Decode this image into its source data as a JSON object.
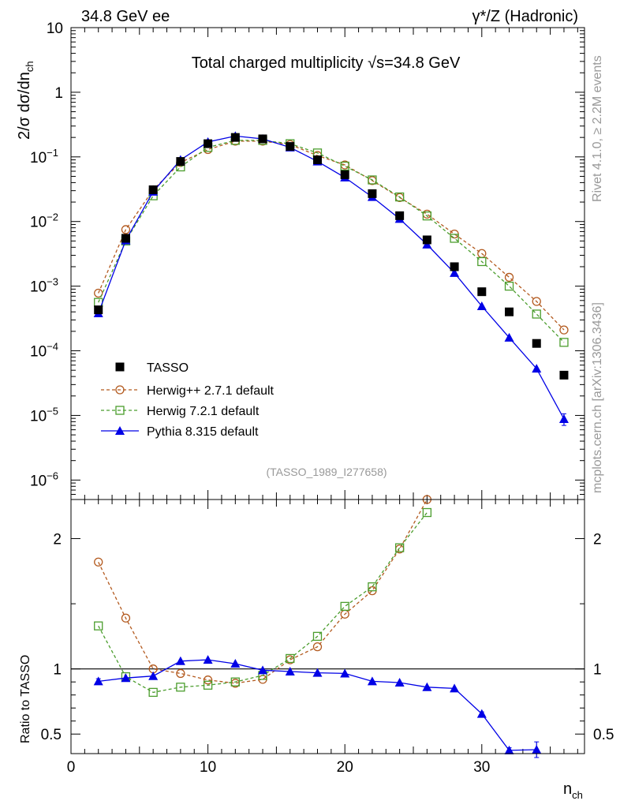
{
  "header": {
    "left": "34.8 GeV ee",
    "right": "γ*/Z (Hadronic)"
  },
  "side_text": {
    "rivet": "Rivet 4.1.0, ≥ 2.2M events",
    "site": "mcplots.cern.ch [arXiv:1306.3436]"
  },
  "colors": {
    "tasso": "#000000",
    "herwigpp": "#b35a1f",
    "herwig7": "#4b9d2d",
    "pythia": "#0000e6",
    "watermark": "#999999"
  },
  "chart_data": [
    {
      "type": "scatter",
      "panel": "main",
      "title_prefix": "Total charged multiplicity ",
      "title_energy": "s=34.8 GeV",
      "ylabel": "2/σ  dσ/dn",
      "ylabel_sub": "ch",
      "yscale": "log",
      "ylim": [
        5e-07,
        10
      ],
      "xlim": [
        0,
        37.5
      ],
      "y_tick_labels": [
        {
          "base": "10",
          "exp": "",
          "value": 10
        },
        {
          "base": "1",
          "exp": "",
          "value": 1
        },
        {
          "base": "10",
          "exp": "−1",
          "value": 0.1
        },
        {
          "base": "10",
          "exp": "−2",
          "value": 0.01
        },
        {
          "base": "10",
          "exp": "−3",
          "value": 0.001
        },
        {
          "base": "10",
          "exp": "−4",
          "value": 0.0001
        },
        {
          "base": "10",
          "exp": "−5",
          "value": 1e-05
        },
        {
          "base": "10",
          "exp": "−6",
          "value": 1e-06
        }
      ],
      "analysis_id": "(TASSO_1989_I277658)",
      "legend_position": "bottom-left",
      "series": [
        {
          "name": "TASSO",
          "style": "data",
          "x": [
            2,
            4,
            6,
            8,
            10,
            12,
            14,
            16,
            18,
            20,
            22,
            24,
            26,
            28,
            30,
            32,
            34,
            36
          ],
          "y": [
            0.00043,
            0.0055,
            0.031,
            0.085,
            0.16,
            0.2,
            0.19,
            0.145,
            0.09,
            0.053,
            0.027,
            0.0123,
            0.0052,
            0.002,
            0.00082,
            0.0004,
            0.00013,
            4.2e-05
          ]
        },
        {
          "name": "Herwig++ 2.7.1 default",
          "style": "herwigpp",
          "x": [
            2,
            4,
            6,
            8,
            10,
            12,
            14,
            16,
            18,
            20,
            22,
            24,
            26,
            28,
            30,
            32,
            34,
            36
          ],
          "y": [
            0.00078,
            0.0075,
            0.031,
            0.082,
            0.13,
            0.175,
            0.175,
            0.155,
            0.105,
            0.075,
            0.043,
            0.0235,
            0.013,
            0.0064,
            0.0032,
            0.00137,
            0.00058,
            0.00021
          ]
        },
        {
          "name": "Herwig 7.2.1 default",
          "style": "herwig7",
          "x": [
            2,
            4,
            6,
            8,
            10,
            12,
            14,
            16,
            18,
            20,
            22,
            24,
            26,
            28,
            30,
            32,
            34,
            36
          ],
          "y": [
            0.00056,
            0.005,
            0.025,
            0.07,
            0.14,
            0.18,
            0.18,
            0.16,
            0.115,
            0.072,
            0.044,
            0.024,
            0.0122,
            0.0055,
            0.0024,
            0.001,
            0.00037,
            0.000135
          ]
        },
        {
          "name": "Pythia 8.315 default",
          "style": "pythia",
          "x": [
            2,
            4,
            6,
            8,
            10,
            12,
            14,
            16,
            18,
            20,
            22,
            24,
            26,
            28,
            30,
            32,
            34,
            36
          ],
          "y": [
            0.00038,
            0.0051,
            0.029,
            0.09,
            0.17,
            0.21,
            0.19,
            0.14,
            0.085,
            0.048,
            0.024,
            0.011,
            0.0044,
            0.0016,
            0.00049,
            0.00016,
            5.3e-05,
            8.8e-06
          ],
          "err_last": 1.8e-06
        }
      ]
    },
    {
      "type": "line",
      "panel": "ratio",
      "ylabel": "Ratio to TASSO",
      "xlabel": "n",
      "xlabel_sub": "ch",
      "xlim": [
        0,
        37.5
      ],
      "ylim": [
        0.35,
        2.3
      ],
      "x_ticks": [
        0,
        10,
        20,
        30
      ],
      "x_tick_labels": [
        "0",
        "10",
        "20",
        "30"
      ],
      "y_ticks": [
        0.5,
        1,
        2
      ],
      "y_tick_labels": [
        "0.5",
        "1",
        "2"
      ],
      "reference_line": 1,
      "series": [
        {
          "name": "Herwig++ 2.7.1 default",
          "style": "herwigpp",
          "x": [
            2,
            4,
            6,
            8,
            10,
            12,
            14,
            16,
            18,
            20,
            22,
            24,
            26
          ],
          "y": [
            1.82,
            1.39,
            1.0,
            0.965,
            0.915,
            0.89,
            0.92,
            1.07,
            1.17,
            1.42,
            1.6,
            1.92,
            2.3
          ]
        },
        {
          "name": "Herwig 7.2.1 default",
          "style": "herwig7",
          "x": [
            2,
            4,
            6,
            8,
            10,
            12,
            14,
            16,
            18,
            20,
            22,
            24,
            26
          ],
          "y": [
            1.33,
            0.94,
            0.82,
            0.86,
            0.875,
            0.9,
            0.95,
            1.08,
            1.25,
            1.48,
            1.63,
            1.93,
            2.2
          ]
        },
        {
          "name": "Pythia 8.315 default",
          "style": "pythia",
          "x": [
            2,
            4,
            6,
            8,
            10,
            12,
            14,
            16,
            18,
            20,
            22,
            24,
            26,
            28,
            30,
            32,
            34
          ],
          "y": [
            0.905,
            0.93,
            0.945,
            1.06,
            1.07,
            1.04,
            0.99,
            0.98,
            0.97,
            0.965,
            0.905,
            0.895,
            0.86,
            0.85,
            0.655,
            0.375,
            0.38
          ],
          "err": [
            0.02,
            0.0,
            0.0,
            0.0,
            0.0,
            0.0,
            0.0,
            0.0,
            0.0,
            0.0,
            0.0,
            0.0,
            0.0,
            0.0,
            0.015,
            0.02,
            0.06
          ]
        }
      ]
    }
  ]
}
